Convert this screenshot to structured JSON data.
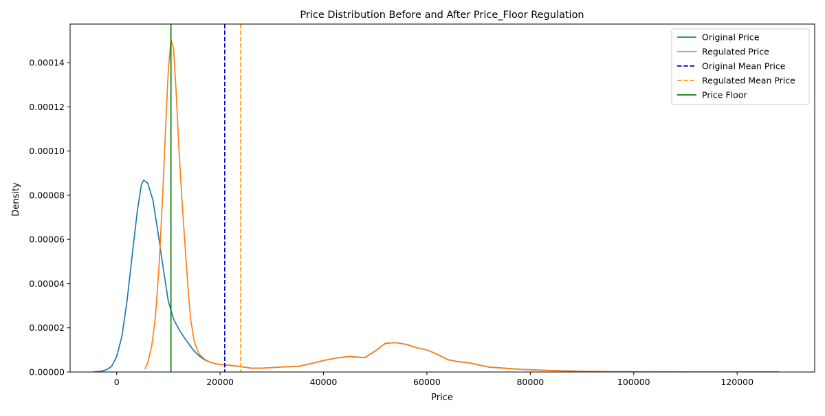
{
  "chart_data": {
    "type": "line",
    "title": "Price Distribution Before and After Price_Floor Regulation",
    "xlabel": "Price",
    "ylabel": "Density",
    "xlim": [
      -9000,
      135000
    ],
    "ylim": [
      0,
      0.0001575
    ],
    "x_ticks": [
      0,
      20000,
      40000,
      60000,
      80000,
      100000,
      120000
    ],
    "x_tick_labels": [
      "0",
      "20000",
      "40000",
      "60000",
      "80000",
      "100000",
      "120000"
    ],
    "y_ticks": [
      0,
      2e-05,
      4e-05,
      6e-05,
      8e-05,
      0.0001,
      0.00012,
      0.00014
    ],
    "y_tick_labels": [
      "0.00000",
      "0.00002",
      "0.00004",
      "0.00006",
      "0.00008",
      "0.00010",
      "0.00012",
      "0.00014"
    ],
    "grid": false,
    "legend_position": "top-right",
    "series": [
      {
        "name": "Original Price",
        "color": "#1f77b4",
        "style": "solid",
        "points": [
          [
            -4500,
            0
          ],
          [
            -3000,
            3e-07
          ],
          [
            -2000,
            1e-06
          ],
          [
            -1000,
            2.5e-06
          ],
          [
            0,
            7e-06
          ],
          [
            1000,
            1.6e-05
          ],
          [
            2000,
            3.2e-05
          ],
          [
            3000,
            5.3e-05
          ],
          [
            4000,
            7.3e-05
          ],
          [
            4800,
            8.5e-05
          ],
          [
            5200,
            8.68e-05
          ],
          [
            6000,
            8.55e-05
          ],
          [
            7000,
            7.8e-05
          ],
          [
            8000,
            6.3e-05
          ],
          [
            9000,
            4.7e-05
          ],
          [
            10000,
            3.2e-05
          ],
          [
            11000,
            2.4e-05
          ],
          [
            12000,
            1.95e-05
          ],
          [
            13000,
            1.58e-05
          ],
          [
            14000,
            1.25e-05
          ],
          [
            15000,
            9.5e-06
          ],
          [
            16000,
            7.2e-06
          ],
          [
            17000,
            5.5e-06
          ],
          [
            18000,
            4.5e-06
          ],
          [
            19000,
            3.8e-06
          ],
          [
            20000,
            3.4e-06
          ],
          [
            22000,
            3e-06
          ],
          [
            24000,
            2.5e-06
          ],
          [
            26000,
            1.7e-06
          ],
          [
            28000,
            1.7e-06
          ],
          [
            30000,
            2e-06
          ],
          [
            32000,
            2.3e-06
          ],
          [
            35000,
            2.5e-06
          ],
          [
            38000,
            4e-06
          ],
          [
            40000,
            5.2e-06
          ],
          [
            43000,
            6.5e-06
          ],
          [
            45000,
            7e-06
          ],
          [
            48000,
            6.5e-06
          ],
          [
            50000,
            9.5e-06
          ],
          [
            52000,
            1.3e-05
          ],
          [
            54000,
            1.33e-05
          ],
          [
            56000,
            1.25e-05
          ],
          [
            58000,
            1.1e-05
          ],
          [
            60000,
            1e-05
          ],
          [
            62000,
            8e-06
          ],
          [
            64000,
            5.6e-06
          ],
          [
            66000,
            4.7e-06
          ],
          [
            68000,
            4.2e-06
          ],
          [
            70000,
            3.2e-06
          ],
          [
            72000,
            2.2e-06
          ],
          [
            75000,
            1.7e-06
          ],
          [
            78000,
            1.2e-06
          ],
          [
            80000,
            1e-06
          ],
          [
            85000,
            6e-07
          ],
          [
            90000,
            3e-07
          ],
          [
            100000,
            1e-07
          ],
          [
            110000,
            5e-08
          ],
          [
            120000,
            2e-08
          ],
          [
            128000,
            0
          ]
        ]
      },
      {
        "name": "Regulated Price",
        "color": "#ff7f0e",
        "style": "solid",
        "points": [
          [
            5500,
            1.5e-06
          ],
          [
            6000,
            4e-06
          ],
          [
            6800,
            1.2e-05
          ],
          [
            7500,
            2.5e-05
          ],
          [
            8200,
            4.8e-05
          ],
          [
            9000,
            8.5e-05
          ],
          [
            9500,
            0.000112
          ],
          [
            10000,
            0.000137
          ],
          [
            10500,
            0.0001505
          ],
          [
            11000,
            0.0001465
          ],
          [
            11500,
            0.000127
          ],
          [
            12000,
            0.000103
          ],
          [
            12600,
            7.9e-05
          ],
          [
            13200,
            5.8e-05
          ],
          [
            13800,
            3.8e-05
          ],
          [
            14300,
            2.4e-05
          ],
          [
            15000,
            1.4e-05
          ],
          [
            15500,
            1.05e-05
          ],
          [
            16000,
            8e-06
          ],
          [
            17000,
            5.8e-06
          ],
          [
            18000,
            4.5e-06
          ],
          [
            19000,
            3.8e-06
          ],
          [
            20000,
            3.4e-06
          ],
          [
            22000,
            3e-06
          ],
          [
            24000,
            2.5e-06
          ],
          [
            26000,
            1.7e-06
          ],
          [
            28000,
            1.7e-06
          ],
          [
            30000,
            2e-06
          ],
          [
            32000,
            2.3e-06
          ],
          [
            35000,
            2.5e-06
          ],
          [
            38000,
            4e-06
          ],
          [
            40000,
            5.2e-06
          ],
          [
            43000,
            6.5e-06
          ],
          [
            45000,
            7e-06
          ],
          [
            48000,
            6.5e-06
          ],
          [
            50000,
            9.5e-06
          ],
          [
            52000,
            1.3e-05
          ],
          [
            54000,
            1.33e-05
          ],
          [
            56000,
            1.25e-05
          ],
          [
            58000,
            1.1e-05
          ],
          [
            60000,
            1e-05
          ],
          [
            62000,
            8e-06
          ],
          [
            64000,
            5.6e-06
          ],
          [
            66000,
            4.7e-06
          ],
          [
            68000,
            4.2e-06
          ],
          [
            70000,
            3.2e-06
          ],
          [
            72000,
            2.2e-06
          ],
          [
            75000,
            1.7e-06
          ],
          [
            78000,
            1.2e-06
          ],
          [
            80000,
            1e-06
          ],
          [
            85000,
            6e-07
          ],
          [
            90000,
            3e-07
          ],
          [
            100000,
            1e-07
          ],
          [
            110000,
            5e-08
          ],
          [
            120000,
            2e-08
          ],
          [
            128000,
            0
          ]
        ]
      }
    ],
    "vlines": [
      {
        "name": "Original Mean Price",
        "x": 20900,
        "color": "#0000cc",
        "style": "dashed"
      },
      {
        "name": "Regulated Mean Price",
        "x": 24000,
        "color": "#ff9900",
        "style": "dashed"
      },
      {
        "name": "Price Floor",
        "x": 10500,
        "color": "#008000",
        "style": "solid"
      }
    ],
    "legend": [
      {
        "label": "Original Price",
        "color": "#1f77b4",
        "style": "solid"
      },
      {
        "label": "Regulated Price",
        "color": "#ff7f0e",
        "style": "solid"
      },
      {
        "label": "Original Mean Price",
        "color": "#0000cc",
        "style": "dashed"
      },
      {
        "label": "Regulated Mean Price",
        "color": "#ff9900",
        "style": "dashed"
      },
      {
        "label": "Price Floor",
        "color": "#008000",
        "style": "solid"
      }
    ]
  }
}
